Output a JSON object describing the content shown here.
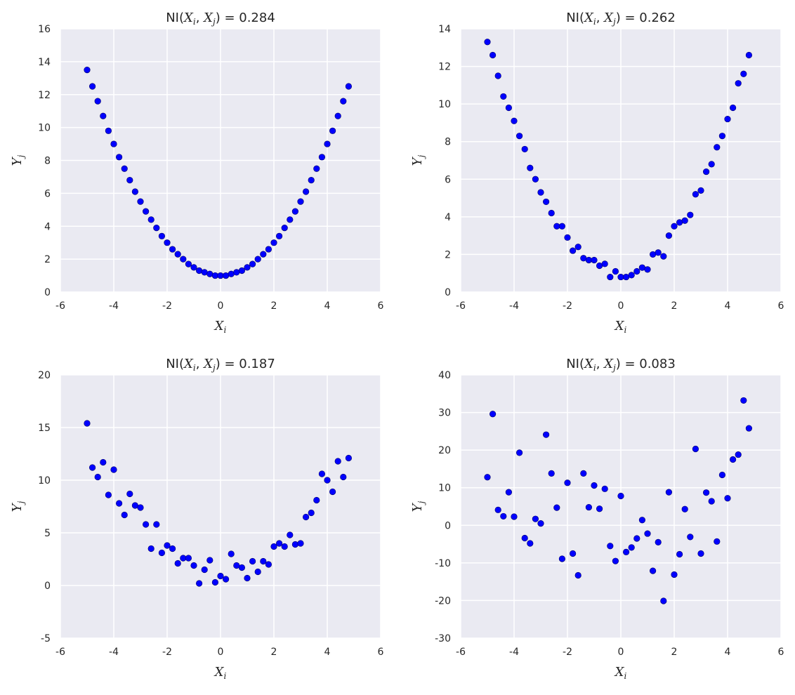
{
  "chart_data": [
    {
      "type": "scatter",
      "title_prefix": "NI(",
      "title_var_1": "X",
      "title_var_1_sub": "i",
      "title_sep": ", ",
      "title_var_2": "X",
      "title_var_2_sub": "j",
      "title_suffix": ") = 0.284",
      "xlabel": "X",
      "xlabel_sub": "i",
      "ylabel": "Y",
      "ylabel_sub": "j",
      "xlim": [
        -6,
        6
      ],
      "ylim": [
        0,
        16
      ],
      "x_ticks": [
        -6,
        -4,
        -2,
        0,
        2,
        4,
        6
      ],
      "y_ticks": [
        0,
        2,
        4,
        6,
        8,
        10,
        12,
        14,
        16
      ],
      "grid": true,
      "point_color": "#0000ff",
      "x": [
        -5.0,
        -4.8,
        -4.6,
        -4.4,
        -4.2,
        -4.0,
        -3.8,
        -3.6,
        -3.4,
        -3.2,
        -3.0,
        -2.8,
        -2.6,
        -2.4,
        -2.2,
        -2.0,
        -1.8,
        -1.6,
        -1.4,
        -1.2,
        -1.0,
        -0.8,
        -0.6,
        -0.4,
        -0.2,
        0.0,
        0.2,
        0.4,
        0.6,
        0.8,
        1.0,
        1.2,
        1.4,
        1.6,
        1.8,
        2.0,
        2.2,
        2.4,
        2.6,
        2.8,
        3.0,
        3.2,
        3.4,
        3.6,
        3.8,
        4.0,
        4.2,
        4.4,
        4.6,
        4.8
      ],
      "y": [
        13.5,
        12.5,
        11.6,
        10.7,
        9.8,
        9.0,
        8.2,
        7.5,
        6.8,
        6.1,
        5.5,
        4.9,
        4.4,
        3.9,
        3.4,
        3.0,
        2.6,
        2.3,
        2.0,
        1.7,
        1.5,
        1.3,
        1.2,
        1.1,
        1.0,
        1.0,
        1.0,
        1.1,
        1.2,
        1.3,
        1.5,
        1.7,
        2.0,
        2.3,
        2.6,
        3.0,
        3.4,
        3.9,
        4.4,
        4.9,
        5.5,
        6.1,
        6.8,
        7.5,
        8.2,
        9.0,
        9.8,
        10.7,
        11.6,
        12.5
      ]
    },
    {
      "type": "scatter",
      "title_prefix": "NI(",
      "title_var_1": "X",
      "title_var_1_sub": "i",
      "title_sep": ", ",
      "title_var_2": "X",
      "title_var_2_sub": "j",
      "title_suffix": ") = 0.262",
      "xlabel": "X",
      "xlabel_sub": "i",
      "ylabel": "Y",
      "ylabel_sub": "j",
      "xlim": [
        -6,
        6
      ],
      "ylim": [
        0,
        14
      ],
      "x_ticks": [
        -6,
        -4,
        -2,
        0,
        2,
        4,
        6
      ],
      "y_ticks": [
        0,
        2,
        4,
        6,
        8,
        10,
        12,
        14
      ],
      "grid": true,
      "point_color": "#0000ff",
      "x": [
        -5.0,
        -4.8,
        -4.6,
        -4.4,
        -4.2,
        -4.0,
        -3.8,
        -3.6,
        -3.4,
        -3.2,
        -3.0,
        -2.8,
        -2.6,
        -2.4,
        -2.2,
        -2.0,
        -1.8,
        -1.6,
        -1.4,
        -1.2,
        -1.0,
        -0.8,
        -0.6,
        -0.4,
        -0.2,
        0.0,
        0.2,
        0.4,
        0.6,
        0.8,
        1.0,
        1.2,
        1.4,
        1.6,
        1.8,
        2.0,
        2.2,
        2.4,
        2.6,
        2.8,
        3.0,
        3.2,
        3.4,
        3.6,
        3.8,
        4.0,
        4.2,
        4.4,
        4.6,
        4.8
      ],
      "y": [
        13.3,
        12.6,
        11.5,
        10.4,
        9.8,
        9.1,
        8.3,
        7.6,
        6.6,
        6.0,
        5.3,
        4.8,
        4.2,
        3.5,
        3.5,
        2.9,
        2.2,
        2.4,
        1.8,
        1.7,
        1.7,
        1.4,
        1.5,
        0.8,
        1.1,
        0.8,
        0.8,
        0.9,
        1.1,
        1.3,
        1.2,
        2.0,
        2.1,
        1.9,
        3.0,
        3.5,
        3.7,
        3.8,
        4.1,
        5.2,
        5.4,
        6.4,
        6.8,
        7.7,
        8.3,
        9.2,
        9.8,
        11.1,
        11.6,
        12.6
      ]
    },
    {
      "type": "scatter",
      "title_prefix": "NI(",
      "title_var_1": "X",
      "title_var_1_sub": "i",
      "title_sep": ", ",
      "title_var_2": "X",
      "title_var_2_sub": "j",
      "title_suffix": ") = 0.187",
      "xlabel": "X",
      "xlabel_sub": "i",
      "ylabel": "Y",
      "ylabel_sub": "j",
      "xlim": [
        -6,
        6
      ],
      "ylim": [
        -5,
        20
      ],
      "x_ticks": [
        -6,
        -4,
        -2,
        0,
        2,
        4,
        6
      ],
      "y_ticks": [
        -5,
        0,
        5,
        10,
        15,
        20
      ],
      "grid": true,
      "point_color": "#0000ff",
      "x": [
        -5.0,
        -4.8,
        -4.6,
        -4.4,
        -4.2,
        -4.0,
        -3.8,
        -3.6,
        -3.4,
        -3.2,
        -3.0,
        -2.8,
        -2.6,
        -2.4,
        -2.2,
        -2.0,
        -1.8,
        -1.6,
        -1.4,
        -1.2,
        -1.0,
        -0.8,
        -0.6,
        -0.4,
        -0.2,
        0.0,
        0.2,
        0.4,
        0.6,
        0.8,
        1.0,
        1.2,
        1.4,
        1.6,
        1.8,
        2.0,
        2.2,
        2.4,
        2.6,
        2.8,
        3.0,
        3.2,
        3.4,
        3.6,
        3.8,
        4.0,
        4.2,
        4.4,
        4.6,
        4.8
      ],
      "y": [
        15.4,
        11.2,
        10.3,
        11.7,
        8.6,
        11.0,
        7.8,
        6.7,
        8.7,
        7.6,
        7.4,
        5.8,
        3.5,
        5.8,
        3.1,
        3.8,
        3.5,
        2.1,
        2.6,
        2.6,
        1.9,
        0.2,
        1.5,
        2.4,
        0.3,
        0.9,
        0.6,
        3.0,
        1.9,
        1.7,
        0.7,
        2.3,
        1.3,
        2.3,
        2.0,
        3.7,
        4.0,
        3.7,
        4.8,
        3.9,
        4.0,
        6.5,
        6.9,
        8.1,
        10.6,
        10.0,
        8.9,
        11.8,
        10.3,
        12.1
      ]
    },
    {
      "type": "scatter",
      "title_prefix": "NI(",
      "title_var_1": "X",
      "title_var_1_sub": "i",
      "title_sep": ", ",
      "title_var_2": "X",
      "title_var_2_sub": "j",
      "title_suffix": ") = 0.083",
      "xlabel": "X",
      "xlabel_sub": "i",
      "ylabel": "Y",
      "ylabel_sub": "j",
      "xlim": [
        -6,
        6
      ],
      "ylim": [
        -30,
        40
      ],
      "x_ticks": [
        -6,
        -4,
        -2,
        0,
        2,
        4,
        6
      ],
      "y_ticks": [
        -30,
        -20,
        -10,
        0,
        10,
        20,
        30,
        40
      ],
      "grid": true,
      "point_color": "#0000ff",
      "x": [
        -5.0,
        -4.8,
        -4.6,
        -4.4,
        -4.2,
        -4.0,
        -3.8,
        -3.6,
        -3.4,
        -3.2,
        -3.0,
        -2.8,
        -2.6,
        -2.4,
        -2.2,
        -2.0,
        -1.8,
        -1.6,
        -1.4,
        -1.2,
        -1.0,
        -0.8,
        -0.6,
        -0.4,
        -0.2,
        0.0,
        0.2,
        0.4,
        0.6,
        0.8,
        1.0,
        1.2,
        1.4,
        1.6,
        1.8,
        2.0,
        2.2,
        2.4,
        2.6,
        2.8,
        3.0,
        3.2,
        3.4,
        3.6,
        3.8,
        4.0,
        4.2,
        4.4,
        4.6,
        4.8
      ],
      "y": [
        12.8,
        29.6,
        4.1,
        2.4,
        8.8,
        2.3,
        19.3,
        -3.4,
        -4.8,
        1.7,
        0.5,
        24.1,
        13.8,
        4.7,
        -8.9,
        11.3,
        -7.5,
        -13.3,
        13.8,
        4.8,
        10.6,
        4.4,
        9.7,
        -5.5,
        -9.5,
        7.8,
        -7.1,
        -5.9,
        -3.5,
        1.4,
        -2.2,
        -12.1,
        -4.5,
        -20.1,
        8.8,
        -13.1,
        -7.7,
        4.3,
        -3.1,
        20.3,
        -7.5,
        8.7,
        6.4,
        -4.3,
        13.4,
        7.2,
        17.5,
        18.8,
        33.2,
        25.8
      ]
    }
  ]
}
